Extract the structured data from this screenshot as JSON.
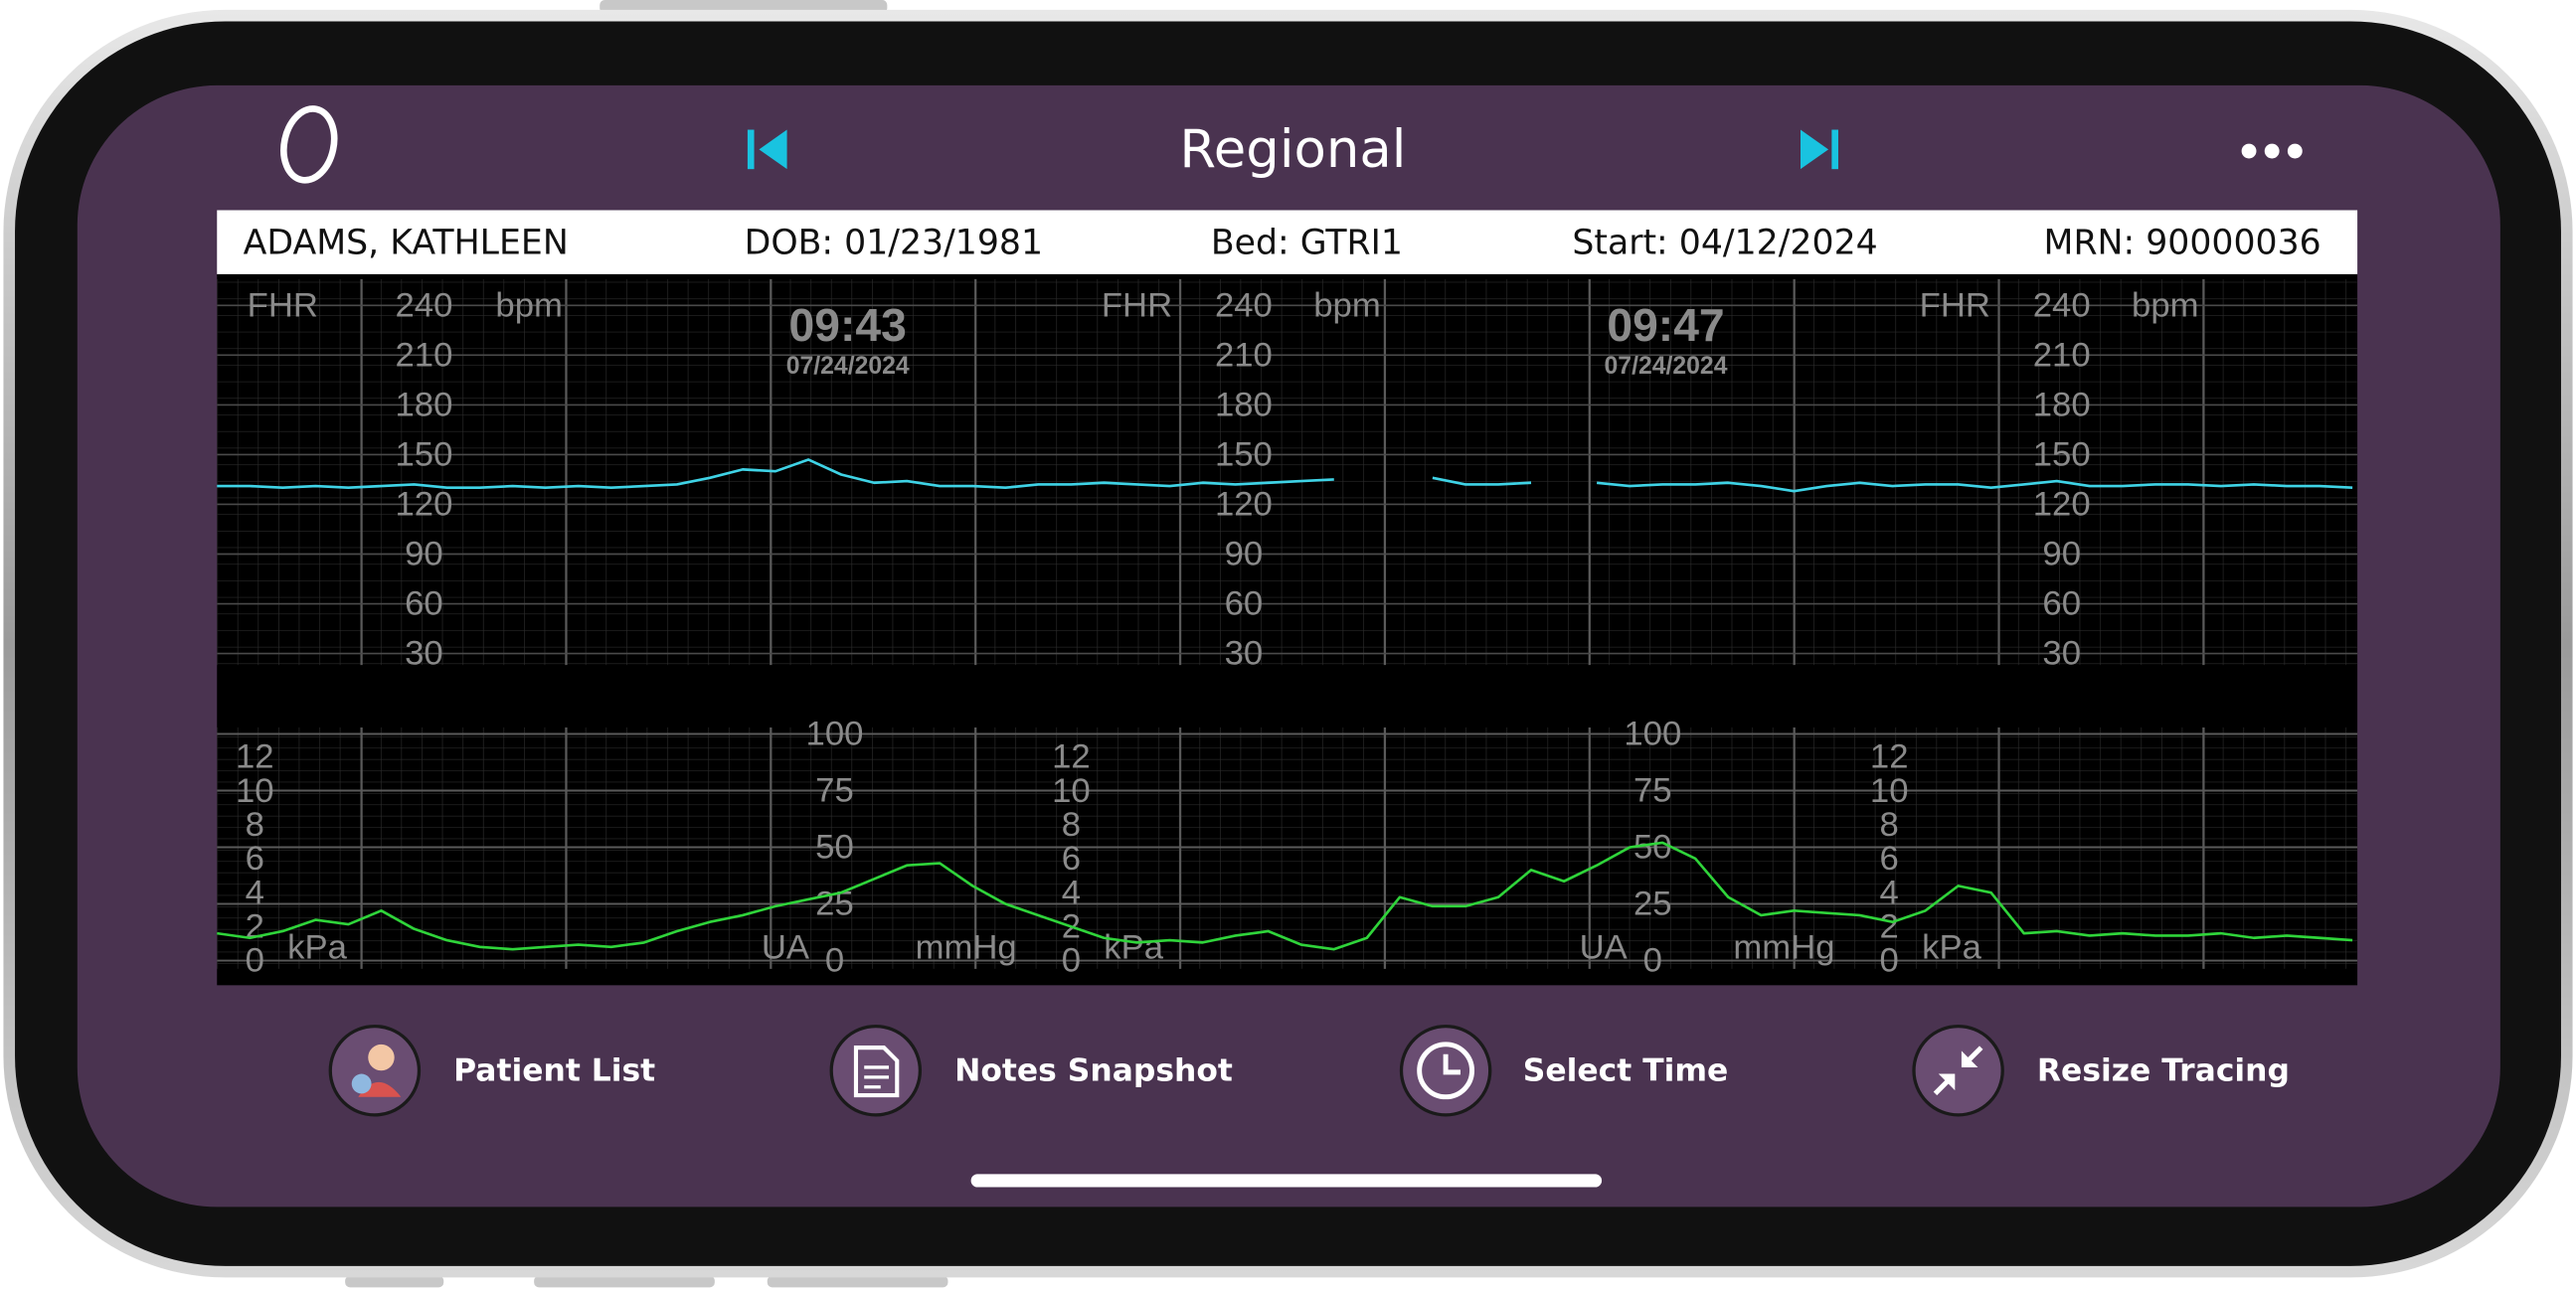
{
  "app_bar": {
    "title": "Regional"
  },
  "patient": {
    "name": "ADAMS, KATHLEEN",
    "dob": "DOB: 01/23/1981",
    "bed": "Bed: GTRI1",
    "start": "Start: 04/12/2024",
    "mrn": "MRN: 90000036"
  },
  "tracing": {
    "fhr_axis": {
      "label": "FHR",
      "unit": "bpm",
      "ticks": [
        240,
        210,
        180,
        150,
        120,
        90,
        60,
        30
      ]
    },
    "ua_axis": {
      "label": "UA",
      "unit": "mmHg",
      "ticks": [
        100,
        75,
        50,
        25,
        0
      ]
    },
    "kpa_axis": {
      "unit": "kPa",
      "ticks": [
        12,
        10,
        8,
        6,
        4,
        2,
        0
      ]
    },
    "timestamps": [
      {
        "time": "09:43",
        "date": "07/24/2024"
      },
      {
        "time": "09:47",
        "date": "07/24/2024"
      }
    ],
    "fhr": [
      131,
      131,
      130,
      131,
      130,
      131,
      132,
      130,
      130,
      131,
      130,
      131,
      130,
      131,
      132,
      136,
      141,
      140,
      147,
      138,
      133,
      134,
      131,
      131,
      130,
      132,
      132,
      133,
      132,
      131,
      133,
      132,
      133,
      134,
      135,
      null,
      null,
      136,
      132,
      132,
      133,
      null,
      133,
      131,
      132,
      132,
      133,
      131,
      128,
      131,
      133,
      131,
      132,
      132,
      130,
      132,
      134,
      131,
      131,
      132,
      132,
      131,
      132,
      131,
      131,
      130
    ],
    "ua": [
      12,
      10,
      13,
      18,
      16,
      22,
      14,
      9,
      6,
      5,
      6,
      7,
      6,
      8,
      13,
      17,
      20,
      24,
      27,
      30,
      36,
      42,
      43,
      33,
      25,
      20,
      15,
      10,
      8,
      9,
      8,
      11,
      13,
      7,
      5,
      10,
      28,
      24,
      24,
      28,
      40,
      35,
      42,
      50,
      52,
      45,
      28,
      20,
      22,
      21,
      20,
      17,
      22,
      33,
      30,
      12,
      13,
      11,
      12,
      11,
      11,
      12,
      10,
      11,
      10,
      9
    ]
  },
  "actions": [
    {
      "label": "Patient List"
    },
    {
      "label": "Notes Snapshot"
    },
    {
      "label": "Select Time"
    },
    {
      "label": "Resize Tracing"
    }
  ]
}
